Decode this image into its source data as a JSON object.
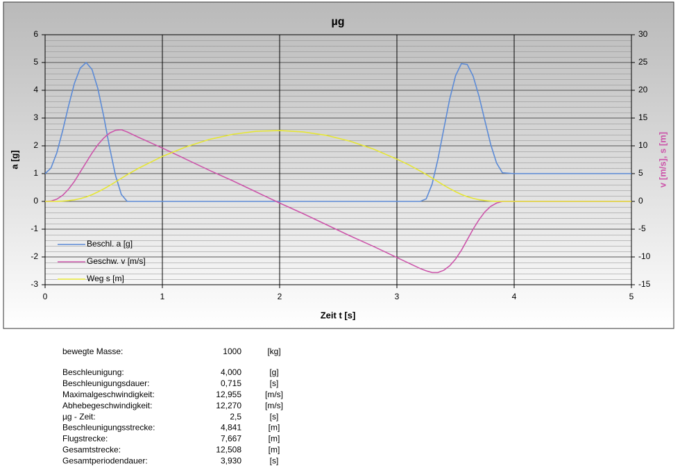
{
  "chart_data": {
    "type": "line",
    "title": "µg",
    "x_label": "Zeit t [s]",
    "y_label": "a [g]",
    "y2_label": "v [m/s], s [m]",
    "x": [
      0,
      0.05,
      0.1,
      0.15,
      0.2,
      0.25,
      0.3,
      0.35,
      0.4,
      0.45,
      0.5,
      0.55,
      0.6,
      0.65,
      0.7,
      0.8,
      1.0,
      1.2,
      1.4,
      1.6,
      1.8,
      2.0,
      2.2,
      2.4,
      2.6,
      2.8,
      3.0,
      3.1,
      3.2,
      3.25,
      3.3,
      3.35,
      3.4,
      3.45,
      3.5,
      3.55,
      3.6,
      3.65,
      3.7,
      3.75,
      3.8,
      3.85,
      3.9,
      4.0,
      4.5,
      5.0
    ],
    "series": [
      {
        "name": "Beschl. a [g]",
        "color": "#5b8ad6",
        "axis": "y",
        "values": [
          1,
          1.2,
          1.75,
          2.55,
          3.44,
          4.25,
          4.8,
          5,
          4.75,
          4.06,
          3.06,
          1.94,
          0.94,
          0.25,
          0,
          0,
          0,
          0,
          0,
          0,
          0,
          0,
          0,
          0,
          0,
          0,
          0,
          0,
          0,
          0.09,
          0.62,
          1.52,
          2.61,
          3.68,
          4.52,
          4.96,
          4.93,
          4.51,
          3.79,
          2.91,
          2.05,
          1.38,
          1.03,
          1,
          1,
          1
        ]
      },
      {
        "name": "Geschw. v [m/s]",
        "color": "#cc55aa",
        "axis": "y2",
        "values": [
          0,
          0.05,
          0.4,
          1.1,
          2.2,
          3.6,
          5.3,
          7.0,
          8.7,
          10.2,
          11.4,
          12.3,
          12.8,
          12.9,
          12.5,
          11.5,
          9.6,
          7.6,
          5.6,
          3.7,
          1.7,
          -0.3,
          -2.2,
          -4.2,
          -6.2,
          -8.1,
          -10.1,
          -11.1,
          -12.1,
          -12.5,
          -12.8,
          -12.8,
          -12.4,
          -11.6,
          -10.4,
          -8.8,
          -6.9,
          -5.0,
          -3.3,
          -1.9,
          -0.9,
          -0.3,
          0,
          0,
          0,
          0
        ]
      },
      {
        "name": "Weg s [m]",
        "color": "#e6e633",
        "axis": "y2",
        "values": [
          0,
          0,
          0.01,
          0.05,
          0.13,
          0.27,
          0.5,
          0.8,
          1.2,
          1.7,
          2.25,
          2.85,
          3.5,
          4.15,
          4.8,
          6.0,
          8.1,
          9.8,
          11.15,
          12.08,
          12.62,
          12.76,
          12.51,
          11.88,
          10.84,
          9.42,
          7.6,
          6.6,
          5.45,
          4.85,
          4.2,
          3.55,
          2.9,
          2.3,
          1.75,
          1.25,
          0.85,
          0.55,
          0.3,
          0.15,
          0.05,
          0.01,
          0,
          0,
          0,
          0
        ]
      }
    ],
    "xlim": [
      0,
      5
    ],
    "xticks": [
      0,
      1,
      2,
      3,
      4,
      5
    ],
    "ylim": [
      -3,
      6
    ],
    "yticks": [
      -3,
      -2,
      -1,
      0,
      1,
      2,
      3,
      4,
      5,
      6
    ],
    "y2lim": [
      -15,
      30
    ],
    "y2ticks": [
      -15,
      -10,
      -5,
      0,
      5,
      10,
      15,
      20,
      25,
      30
    ],
    "grid": true,
    "legend": "lower left"
  },
  "table": {
    "rows": [
      [
        "bewegte Masse:",
        "1000",
        "[kg]"
      ],
      [
        "Beschleunigung:",
        "4,000",
        "[g]"
      ],
      [
        "Beschleunigungsdauer:",
        "0,715",
        "[s]"
      ],
      [
        "Maximalgeschwindigkeit:",
        "12,955",
        "[m/s]"
      ],
      [
        "Abhebegeschwindigkeit:",
        "12,270",
        "[m/s]"
      ],
      [
        "µg - Zeit:",
        "2,5",
        "[s]"
      ],
      [
        "Beschleunigungsstrecke:",
        "4,841",
        "[m]"
      ],
      [
        "Flugstrecke:",
        "7,667",
        "[m]"
      ],
      [
        "Gesamtstrecke:",
        "12,508",
        "[m]"
      ],
      [
        "Gesamtperiodendauer:",
        "3,930",
        "[s]"
      ]
    ]
  }
}
